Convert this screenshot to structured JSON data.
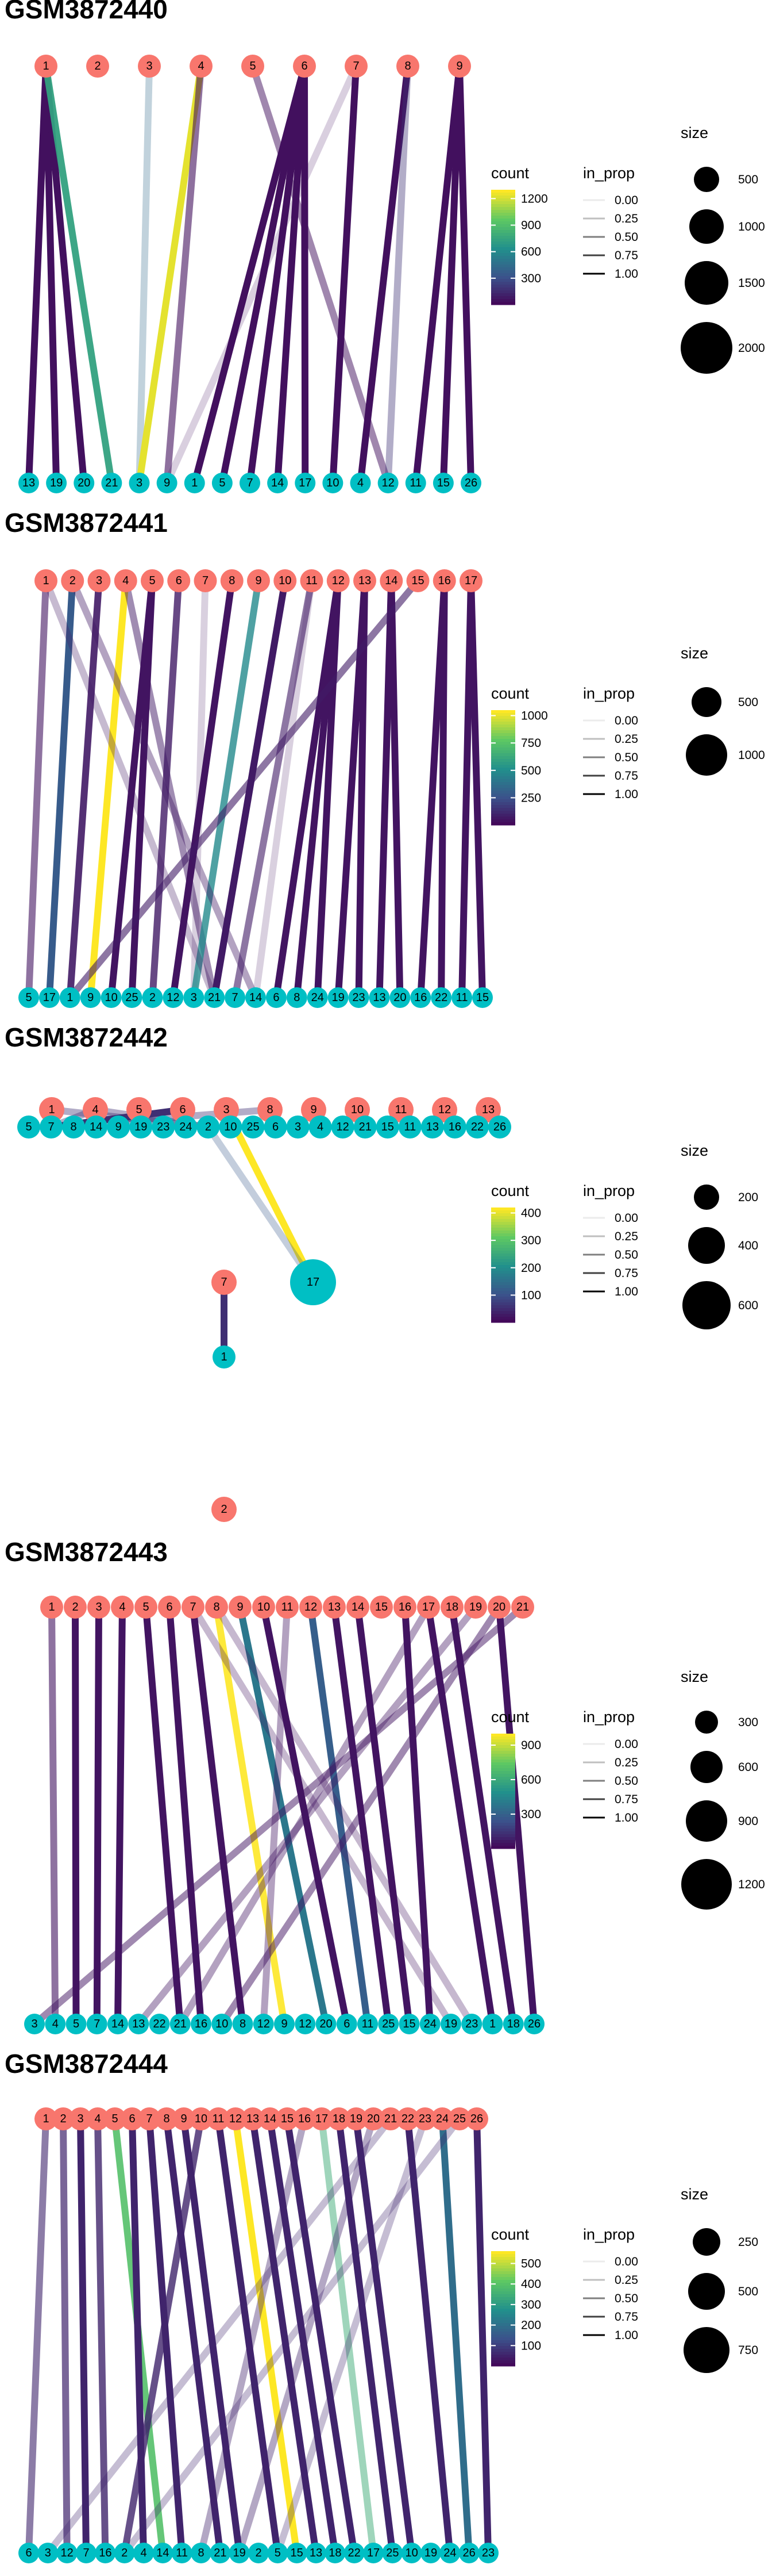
{
  "colors": {
    "cluster_a": "#F8766D",
    "cluster_b": "#00BFC4",
    "viridis": [
      "#440154",
      "#3B528B",
      "#21908C",
      "#5DC863",
      "#FDE725"
    ]
  },
  "chart_data": [
    {
      "type": "network",
      "title": "GSM3872440",
      "count_ticks": [
        300,
        600,
        900,
        1200
      ],
      "count_range": [
        0,
        1300
      ],
      "in_prop_ticks": [
        "0.00",
        "0.25",
        "0.50",
        "0.75",
        "1.00"
      ],
      "size_ticks": [
        500,
        1000,
        1500,
        2000
      ],
      "top_nodes": [
        "1",
        "2",
        "3",
        "4",
        "5",
        "6",
        "7",
        "8",
        "9"
      ],
      "bottom_nodes": [
        "13",
        "19",
        "20",
        "21",
        "3",
        "9",
        "1",
        "5",
        "7",
        "14",
        "17",
        "10",
        "4",
        "12",
        "11",
        "15",
        "26"
      ],
      "edges": [
        [
          "1",
          "13",
          60,
          1.0
        ],
        [
          "1",
          "19",
          60,
          1.0
        ],
        [
          "1",
          "20",
          60,
          1.0
        ],
        [
          "1",
          "21",
          750,
          0.95
        ],
        [
          "3",
          "3",
          450,
          0.3
        ],
        [
          "4",
          "3",
          1250,
          1.0
        ],
        [
          "4",
          "9",
          60,
          0.6
        ],
        [
          "5",
          "12",
          60,
          0.5
        ],
        [
          "6",
          "1",
          60,
          1.0
        ],
        [
          "6",
          "5",
          60,
          1.0
        ],
        [
          "6",
          "7",
          60,
          1.0
        ],
        [
          "6",
          "14",
          60,
          1.0
        ],
        [
          "6",
          "17",
          60,
          1.0
        ],
        [
          "7",
          "10",
          60,
          1.0
        ],
        [
          "7",
          "9",
          60,
          0.2
        ],
        [
          "8",
          "4",
          60,
          1.0
        ],
        [
          "8",
          "12",
          200,
          0.4
        ],
        [
          "9",
          "11",
          60,
          1.0
        ],
        [
          "9",
          "15",
          60,
          1.0
        ],
        [
          "9",
          "26",
          60,
          1.0
        ]
      ]
    },
    {
      "type": "network",
      "title": "GSM3872441",
      "count_ticks": [
        250,
        500,
        750,
        1000
      ],
      "count_range": [
        0,
        1050
      ],
      "in_prop_ticks": [
        "0.00",
        "0.25",
        "0.50",
        "0.75",
        "1.00"
      ],
      "size_ticks": [
        500,
        1000
      ],
      "top_nodes": [
        "1",
        "2",
        "3",
        "4",
        "5",
        "6",
        "7",
        "8",
        "9",
        "10",
        "11",
        "12",
        "13",
        "14",
        "15",
        "16",
        "17"
      ],
      "bottom_nodes": [
        "5",
        "17",
        "1",
        "9",
        "10",
        "25",
        "2",
        "12",
        "3",
        "21",
        "7",
        "14",
        "6",
        "8",
        "24",
        "19",
        "23",
        "13",
        "20",
        "16",
        "22",
        "11",
        "15"
      ],
      "edges": [
        [
          "1",
          "5",
          60,
          0.6
        ],
        [
          "2",
          "17",
          300,
          1.0
        ],
        [
          "3",
          "1",
          80,
          0.9
        ],
        [
          "4",
          "9",
          1050,
          1.0
        ],
        [
          "4",
          "21",
          80,
          0.5
        ],
        [
          "5",
          "10",
          60,
          1.0
        ],
        [
          "5",
          "25",
          60,
          1.0
        ],
        [
          "6",
          "2",
          80,
          0.8
        ],
        [
          "7",
          "3",
          60,
          0.2
        ],
        [
          "8",
          "12",
          60,
          1.0
        ],
        [
          "9",
          "3",
          500,
          0.8
        ],
        [
          "10",
          "21",
          80,
          1.0
        ],
        [
          "11",
          "7",
          80,
          0.6
        ],
        [
          "11",
          "14",
          60,
          0.2
        ],
        [
          "12",
          "6",
          60,
          1.0
        ],
        [
          "12",
          "8",
          60,
          1.0
        ],
        [
          "12",
          "24",
          60,
          1.0
        ],
        [
          "13",
          "19",
          60,
          1.0
        ],
        [
          "13",
          "23",
          60,
          1.0
        ],
        [
          "14",
          "13",
          60,
          1.0
        ],
        [
          "14",
          "20",
          60,
          1.0
        ],
        [
          "15",
          "1",
          80,
          0.6
        ],
        [
          "16",
          "16",
          60,
          1.0
        ],
        [
          "16",
          "22",
          60,
          1.0
        ],
        [
          "17",
          "11",
          60,
          1.0
        ],
        [
          "17",
          "15",
          60,
          1.0
        ],
        [
          "2",
          "14",
          80,
          0.4
        ],
        [
          "1",
          "21",
          80,
          0.3
        ]
      ]
    },
    {
      "type": "network",
      "title": "GSM3872442",
      "count_ticks": [
        100,
        200,
        300,
        400
      ],
      "count_range": [
        0,
        420
      ],
      "in_prop_ticks": [
        "0.00",
        "0.25",
        "0.50",
        "0.75",
        "1.00"
      ],
      "size_ticks": [
        200,
        400,
        600
      ],
      "a_nodes": [
        "1",
        "4",
        "5",
        "6",
        "3",
        "8",
        "9",
        "10",
        "11",
        "12",
        "13",
        "7",
        "2"
      ],
      "b_nodes": [
        "5",
        "7",
        "8",
        "14",
        "9",
        "19",
        "23",
        "24",
        "2",
        "10",
        "25",
        "6",
        "3",
        "4",
        "12",
        "21",
        "15",
        "11",
        "13",
        "16",
        "22",
        "26",
        "17",
        "1"
      ],
      "edges": [
        [
          "1",
          "7",
          60,
          0.4
        ],
        [
          "4",
          "7",
          60,
          0.4
        ],
        [
          "4",
          "2",
          60,
          0.4
        ],
        [
          "6",
          "7",
          60,
          1.0
        ],
        [
          "3",
          "17",
          420,
          1.0
        ],
        [
          "7",
          "1",
          60,
          1.0
        ],
        [
          "1",
          "2",
          60,
          0.4
        ],
        [
          "8",
          "7",
          60,
          0.4
        ],
        [
          "17",
          "2",
          120,
          0.3
        ],
        [
          "5",
          "9",
          60,
          0.3
        ],
        [
          "11",
          "11",
          60,
          0.3
        ]
      ]
    },
    {
      "type": "network",
      "title": "GSM3872443",
      "count_ticks": [
        300,
        600,
        900
      ],
      "count_range": [
        0,
        1000
      ],
      "in_prop_ticks": [
        "0.00",
        "0.25",
        "0.50",
        "0.75",
        "1.00"
      ],
      "size_ticks": [
        300,
        600,
        900,
        1200
      ],
      "top_nodes": [
        "1",
        "2",
        "3",
        "4",
        "5",
        "6",
        "7",
        "8",
        "9",
        "10",
        "11",
        "12",
        "13",
        "14",
        "15",
        "16",
        "17",
        "18",
        "19",
        "20",
        "21"
      ],
      "bottom_nodes": [
        "3",
        "4",
        "5",
        "7",
        "14",
        "13",
        "22",
        "21",
        "16",
        "10",
        "8",
        "12",
        "9",
        "12",
        "20",
        "6",
        "11",
        "25",
        "15",
        "24",
        "19",
        "23",
        "1",
        "18",
        "26"
      ],
      "edges": [
        [
          "1",
          "4",
          60,
          0.6
        ],
        [
          "2",
          "5",
          60,
          1.0
        ],
        [
          "3",
          "7",
          60,
          1.0
        ],
        [
          "4",
          "14",
          60,
          1.0
        ],
        [
          "5",
          "21",
          60,
          1.0
        ],
        [
          "6",
          "16",
          60,
          1.0
        ],
        [
          "7",
          "8",
          60,
          1.0
        ],
        [
          "8",
          "9",
          1000,
          0.9
        ],
        [
          "9",
          "20",
          400,
          1.0
        ],
        [
          "10",
          "6",
          60,
          1.0
        ],
        [
          "12",
          "11",
          300,
          1.0
        ],
        [
          "13",
          "25",
          60,
          1.0
        ],
        [
          "14",
          "15",
          60,
          1.0
        ],
        [
          "16",
          "24",
          60,
          1.0
        ],
        [
          "17",
          "1",
          60,
          1.0
        ],
        [
          "18",
          "18",
          60,
          1.0
        ],
        [
          "20",
          "26",
          60,
          1.0
        ],
        [
          "21",
          "3",
          60,
          0.5
        ],
        [
          "8",
          "23",
          60,
          0.3
        ],
        [
          "19",
          "13",
          60,
          0.4
        ],
        [
          "7",
          "19",
          60,
          0.3
        ],
        [
          "20",
          "10",
          60,
          0.5
        ],
        [
          "17",
          "21",
          60,
          0.4
        ],
        [
          "11",
          "12",
          60,
          0.4
        ]
      ]
    },
    {
      "type": "network",
      "title": "GSM3872444",
      "count_ticks": [
        100,
        200,
        300,
        400,
        500
      ],
      "count_range": [
        0,
        560
      ],
      "in_prop_ticks": [
        "0.00",
        "0.25",
        "0.50",
        "0.75",
        "1.00"
      ],
      "size_ticks": [
        250,
        500,
        750
      ],
      "top_nodes": [
        "1",
        "2",
        "3",
        "4",
        "5",
        "6",
        "7",
        "8",
        "9",
        "10",
        "11",
        "12",
        "13",
        "14",
        "15",
        "16",
        "17",
        "18",
        "19",
        "20",
        "21",
        "22",
        "23",
        "24",
        "25",
        "26"
      ],
      "bottom_nodes": [
        "6",
        "3",
        "12",
        "7",
        "16",
        "2",
        "4",
        "14",
        "11",
        "8",
        "21",
        "19",
        "2",
        "5",
        "15",
        "13",
        "18",
        "22",
        "17",
        "25",
        "10",
        "19",
        "24",
        "26",
        "23"
      ],
      "edges": [
        [
          "1",
          "6",
          60,
          0.6
        ],
        [
          "2",
          "12",
          60,
          0.7
        ],
        [
          "3",
          "7",
          60,
          1.0
        ],
        [
          "4",
          "16",
          60,
          0.8
        ],
        [
          "5",
          "14",
          400,
          0.9
        ],
        [
          "6",
          "4",
          60,
          1.0
        ],
        [
          "7",
          "11",
          60,
          1.0
        ],
        [
          "8",
          "21",
          60,
          1.0
        ],
        [
          "9",
          "19",
          60,
          1.0
        ],
        [
          "10",
          "2",
          60,
          0.8
        ],
        [
          "11",
          "5",
          60,
          1.0
        ],
        [
          "12",
          "15",
          560,
          1.0
        ],
        [
          "13",
          "13",
          60,
          1.0
        ],
        [
          "14",
          "18",
          60,
          1.0
        ],
        [
          "15",
          "22",
          60,
          1.0
        ],
        [
          "17",
          "17",
          350,
          0.5
        ],
        [
          "18",
          "25",
          60,
          1.0
        ],
        [
          "19",
          "10",
          60,
          1.0
        ],
        [
          "20",
          "19",
          60,
          0.4
        ],
        [
          "22",
          "24",
          60,
          1.0
        ],
        [
          "24",
          "26",
          200,
          1.0
        ],
        [
          "26",
          "23",
          60,
          1.0
        ],
        [
          "16",
          "8",
          60,
          0.4
        ],
        [
          "21",
          "3",
          60,
          0.3
        ],
        [
          "25",
          "2",
          60,
          0.3
        ],
        [
          "23",
          "5",
          60,
          0.3
        ]
      ]
    }
  ]
}
